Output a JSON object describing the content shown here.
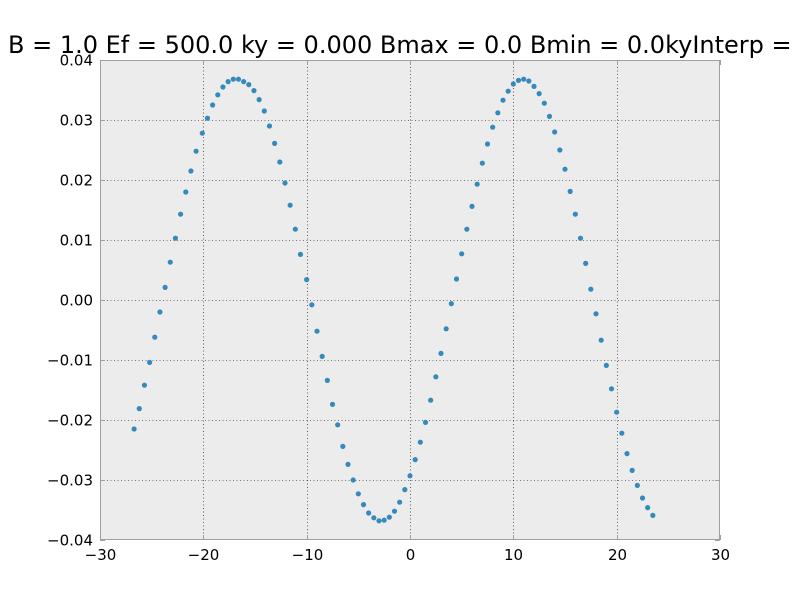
{
  "colors": {
    "figure_background": "#ffffff",
    "plot_background": "#ececec",
    "axes_edge": "#a0a0a0",
    "grid": "#000000",
    "marker": "#348abd"
  },
  "chart_data": {
    "type": "scatter",
    "title": "B = 1.0 Ef = 500.0 ky = 0.000 Bmax = 0.0 Bmin = 0.0kyInterp = ",
    "xlabel": "",
    "ylabel": "",
    "xlim": [
      -30,
      30
    ],
    "ylim": [
      -0.04,
      0.04
    ],
    "grid": true,
    "grid_style": "dotted",
    "x_ticks": [
      -30,
      -20,
      -10,
      0,
      10,
      20,
      30
    ],
    "x_tick_labels": [
      "−30",
      "−20",
      "−10",
      "0",
      "10",
      "20",
      "30"
    ],
    "y_ticks": [
      -0.04,
      -0.03,
      -0.02,
      -0.01,
      0.0,
      0.01,
      0.02,
      0.03,
      0.04
    ],
    "y_tick_labels": [
      "−0.04",
      "−0.03",
      "−0.02",
      "−0.01",
      "0.00",
      "0.01",
      "0.02",
      "0.03",
      "0.04"
    ],
    "series": [
      {
        "values": [
          [
            -26.7,
            -0.0215
          ],
          [
            -26.2,
            -0.0181
          ],
          [
            -25.7,
            -0.0142
          ],
          [
            -25.2,
            -0.0104
          ],
          [
            -24.7,
            -0.0062
          ],
          [
            -24.2,
            -0.002
          ],
          [
            -23.7,
            0.0021
          ],
          [
            -23.2,
            0.0063
          ],
          [
            -22.7,
            0.0103
          ],
          [
            -22.2,
            0.0143
          ],
          [
            -21.7,
            0.018
          ],
          [
            -21.2,
            0.0215
          ],
          [
            -20.7,
            0.0248
          ],
          [
            -20.1,
            0.0278
          ],
          [
            -19.6,
            0.0303
          ],
          [
            -19.1,
            0.0325
          ],
          [
            -18.6,
            0.0342
          ],
          [
            -18.1,
            0.0355
          ],
          [
            -17.6,
            0.0364
          ],
          [
            -17.1,
            0.0368
          ],
          [
            -16.6,
            0.0368
          ],
          [
            -16.1,
            0.0364
          ],
          [
            -15.6,
            0.0359
          ],
          [
            -15.1,
            0.0349
          ],
          [
            -14.6,
            0.0334
          ],
          [
            -14.1,
            0.0315
          ],
          [
            -13.6,
            0.029
          ],
          [
            -13.1,
            0.0261
          ],
          [
            -12.6,
            0.023
          ],
          [
            -12.1,
            0.0195
          ],
          [
            -11.6,
            0.0158
          ],
          [
            -11.1,
            0.0118
          ],
          [
            -10.6,
            0.0076
          ],
          [
            -10.0,
            0.0034
          ],
          [
            -9.5,
            -0.0008
          ],
          [
            -9.0,
            -0.0052
          ],
          [
            -8.5,
            -0.0094
          ],
          [
            -8.0,
            -0.0134
          ],
          [
            -7.5,
            -0.0174
          ],
          [
            -7.0,
            -0.0208
          ],
          [
            -6.5,
            -0.0244
          ],
          [
            -6.0,
            -0.0274
          ],
          [
            -5.5,
            -0.03
          ],
          [
            -5.0,
            -0.0323
          ],
          [
            -4.5,
            -0.0341
          ],
          [
            -4.0,
            -0.0355
          ],
          [
            -3.5,
            -0.0363
          ],
          [
            -3.0,
            -0.0368
          ],
          [
            -2.5,
            -0.0367
          ],
          [
            -2.0,
            -0.0362
          ],
          [
            -1.5,
            -0.0352
          ],
          [
            -1.0,
            -0.0337
          ],
          [
            -0.5,
            -0.0316
          ],
          [
            0.0,
            -0.0293
          ],
          [
            0.5,
            -0.0266
          ],
          [
            1.0,
            -0.0237
          ],
          [
            1.5,
            -0.0204
          ],
          [
            2.0,
            -0.0167
          ],
          [
            2.5,
            -0.0128
          ],
          [
            3.0,
            -0.0089
          ],
          [
            3.5,
            -0.0048
          ],
          [
            4.0,
            -0.0006
          ],
          [
            4.5,
            0.0035
          ],
          [
            5.0,
            0.0077
          ],
          [
            5.5,
            0.0118
          ],
          [
            6.0,
            0.0156
          ],
          [
            6.5,
            0.0193
          ],
          [
            7.0,
            0.0228
          ],
          [
            7.5,
            0.026
          ],
          [
            8.0,
            0.0288
          ],
          [
            8.5,
            0.0312
          ],
          [
            9.0,
            0.0333
          ],
          [
            9.5,
            0.0348
          ],
          [
            10.0,
            0.036
          ],
          [
            10.5,
            0.0366
          ],
          [
            11.0,
            0.0368
          ],
          [
            11.5,
            0.0365
          ],
          [
            12.0,
            0.0356
          ],
          [
            12.5,
            0.0344
          ],
          [
            13.0,
            0.0328
          ],
          [
            13.5,
            0.0306
          ],
          [
            14.0,
            0.028
          ],
          [
            14.5,
            0.025
          ],
          [
            15.0,
            0.0218
          ],
          [
            15.5,
            0.0181
          ],
          [
            16.0,
            0.0143
          ],
          [
            16.5,
            0.0103
          ],
          [
            17.0,
            0.0061
          ],
          [
            17.5,
            0.0018
          ],
          [
            18.0,
            -0.0023
          ],
          [
            18.5,
            -0.0067
          ],
          [
            19.0,
            -0.0109
          ],
          [
            19.5,
            -0.0148
          ],
          [
            20.0,
            -0.0187
          ],
          [
            20.5,
            -0.0222
          ],
          [
            21.0,
            -0.0256
          ],
          [
            21.5,
            -0.0284
          ],
          [
            22.0,
            -0.0309
          ],
          [
            22.5,
            -0.033
          ],
          [
            23.0,
            -0.0346
          ],
          [
            23.5,
            -0.0359
          ]
        ]
      }
    ]
  }
}
